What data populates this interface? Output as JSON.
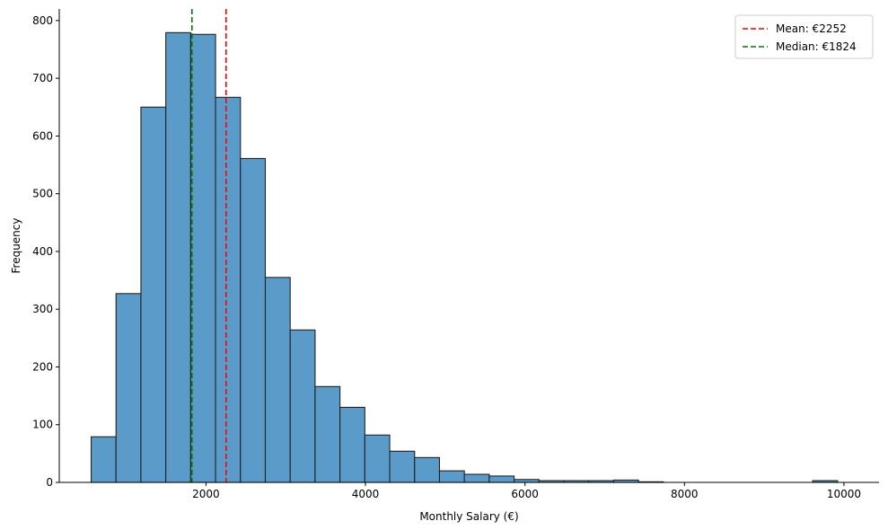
{
  "chart_data": {
    "type": "bar",
    "title": "",
    "xlabel": "Monthly Salary (€)",
    "ylabel": "Frequency",
    "xlim": [
      160,
      10440
    ],
    "ylim": [
      0,
      820
    ],
    "xticks": [
      2000,
      4000,
      6000,
      8000,
      10000
    ],
    "yticks": [
      0,
      100,
      200,
      300,
      400,
      500,
      600,
      700,
      800
    ],
    "grid": false,
    "legend_position": "top-right",
    "colors": {
      "bar_fill": "#5b9bc9",
      "bar_edge": "#222222",
      "mean": "#ff0000",
      "median": "#008000"
    },
    "bin_edges": [
      560,
      872,
      1184,
      1496,
      1808,
      2120,
      2432,
      2744,
      3056,
      3368,
      3680,
      3992,
      4304,
      4616,
      4928,
      5240,
      5552,
      5864,
      6176,
      6488,
      6800,
      7112,
      7424,
      7736,
      8048,
      8360,
      8672,
      8984,
      9296,
      9608,
      9920
    ],
    "values": [
      79,
      327,
      650,
      779,
      776,
      667,
      561,
      355,
      264,
      166,
      130,
      82,
      54,
      43,
      20,
      14,
      11,
      5,
      3,
      3,
      3,
      4,
      1,
      0,
      0,
      0,
      0,
      0,
      0,
      3
    ],
    "reference_lines": [
      {
        "name": "Mean: €2252",
        "x": 2252,
        "color": "#ff0000"
      },
      {
        "name": "Median: €1824",
        "x": 1824,
        "color": "#008000"
      }
    ]
  }
}
